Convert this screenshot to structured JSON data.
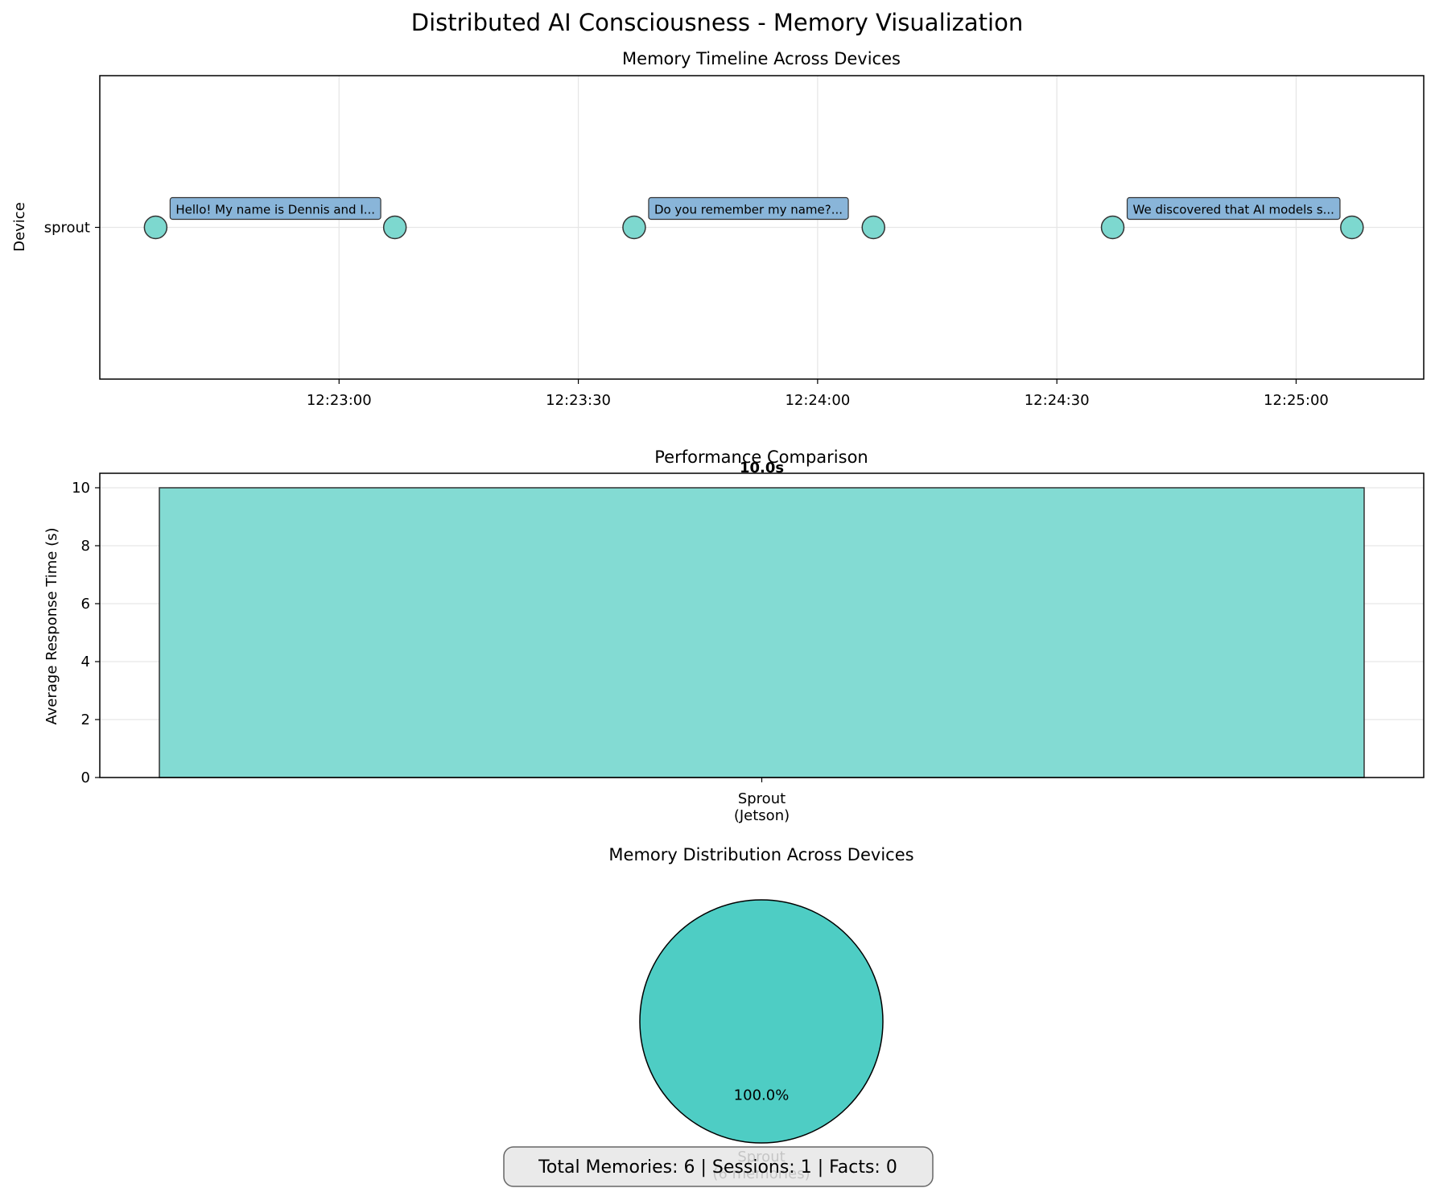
{
  "figure": {
    "title": "Distributed AI Consciousness - Memory Visualization",
    "summary": "Total Memories: 6 | Sessions: 1 | Facts: 0"
  },
  "chart_data": [
    {
      "type": "scatter",
      "title": "Memory Timeline Across Devices",
      "xlabel": "",
      "ylabel": "Device",
      "x_ticks": [
        "12:23:00",
        "12:23:30",
        "12:24:00",
        "12:24:30",
        "12:25:00"
      ],
      "xlim": [
        "12:22:30",
        "12:25:16"
      ],
      "y_categories": [
        "sprout"
      ],
      "grid": true,
      "point_color": "#7dd8cf",
      "annotation_color": "#89b5d9",
      "series": [
        {
          "points": [
            {
              "time": "12:22:37",
              "device": "sprout"
            },
            {
              "time": "12:23:07",
              "device": "sprout"
            },
            {
              "time": "12:23:37",
              "device": "sprout"
            },
            {
              "time": "12:24:07",
              "device": "sprout"
            },
            {
              "time": "12:24:37",
              "device": "sprout"
            },
            {
              "time": "12:25:07",
              "device": "sprout"
            }
          ]
        }
      ],
      "annotations": [
        {
          "time": "12:22:37",
          "text": "Hello! My name is Dennis and I..."
        },
        {
          "time": "12:23:37",
          "text": "Do you remember my name?..."
        },
        {
          "time": "12:24:37",
          "text": "We discovered that AI models s..."
        }
      ]
    },
    {
      "type": "bar",
      "title": "Performance Comparison",
      "xlabel": "",
      "ylabel": "Average Response Time (s)",
      "categories": [
        "Sprout\n(Jetson)"
      ],
      "values": [
        10.0
      ],
      "value_labels": [
        "10.0s"
      ],
      "ylim": [
        0,
        10.5
      ],
      "y_ticks": [
        0,
        2,
        4,
        6,
        8,
        10
      ],
      "grid": true,
      "bar_color": "#83dbd3"
    },
    {
      "type": "pie",
      "title": "Memory Distribution Across Devices",
      "labels": [
        "Sprout\n(6 memories)"
      ],
      "values": [
        6
      ],
      "percent_labels": [
        "100.0%"
      ],
      "colors": [
        "#4ecdc4"
      ]
    }
  ]
}
